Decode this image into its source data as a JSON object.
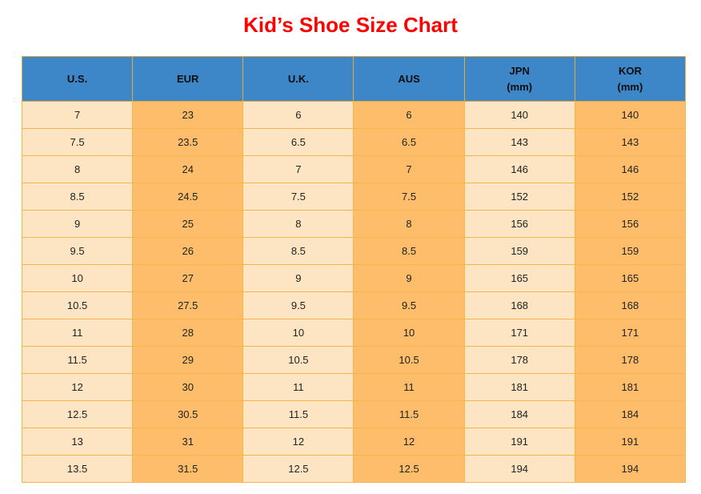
{
  "title": "Kid’s Shoe Size Chart",
  "columns": [
    {
      "line1": "U.S.",
      "line2": ""
    },
    {
      "line1": "EUR",
      "line2": ""
    },
    {
      "line1": "U.K.",
      "line2": ""
    },
    {
      "line1": "AUS",
      "line2": ""
    },
    {
      "line1": "JPN",
      "line2": "(mm)"
    },
    {
      "line1": "KOR",
      "line2": "(mm)"
    }
  ],
  "rows": [
    [
      "7",
      "23",
      "6",
      "6",
      "140",
      "140"
    ],
    [
      "7.5",
      "23.5",
      "6.5",
      "6.5",
      "143",
      "143"
    ],
    [
      "8",
      "24",
      "7",
      "7",
      "146",
      "146"
    ],
    [
      "8.5",
      "24.5",
      "7.5",
      "7.5",
      "152",
      "152"
    ],
    [
      "9",
      "25",
      "8",
      "8",
      "156",
      "156"
    ],
    [
      "9.5",
      "26",
      "8.5",
      "8.5",
      "159",
      "159"
    ],
    [
      "10",
      "27",
      "9",
      "9",
      "165",
      "165"
    ],
    [
      "10.5",
      "27.5",
      "9.5",
      "9.5",
      "168",
      "168"
    ],
    [
      "11",
      "28",
      "10",
      "10",
      "171",
      "171"
    ],
    [
      "11.5",
      "29",
      "10.5",
      "10.5",
      "178",
      "178"
    ],
    [
      "12",
      "30",
      "11",
      "11",
      "181",
      "181"
    ],
    [
      "12.5",
      "30.5",
      "11.5",
      "11.5",
      "184",
      "184"
    ],
    [
      "13",
      "31",
      "12",
      "12",
      "191",
      "191"
    ],
    [
      "13.5",
      "31.5",
      "12.5",
      "12.5",
      "194",
      "194"
    ]
  ],
  "colors": {
    "title": "#ff0000",
    "header": "#3d87c9",
    "light_column": "#fde4c2",
    "dark_column": "#fdbd6a",
    "border": "#f2b64a"
  }
}
